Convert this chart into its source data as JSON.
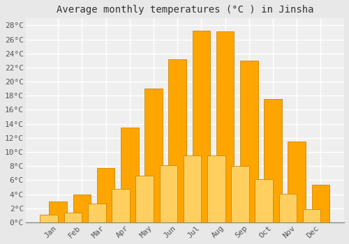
{
  "title": "Average monthly temperatures (°C ) in Jinsha",
  "months": [
    "Jan",
    "Feb",
    "Mar",
    "Apr",
    "May",
    "Jun",
    "Jul",
    "Aug",
    "Sep",
    "Oct",
    "Nov",
    "Dec"
  ],
  "values": [
    3,
    4,
    7.7,
    13.5,
    19,
    23.2,
    27.2,
    27.1,
    23,
    17.5,
    11.5,
    5.3
  ],
  "bar_color_top": "#FFA500",
  "bar_color_bottom": "#FFD060",
  "bar_edge_color": "#CC8800",
  "ylim": [
    0,
    29
  ],
  "yticks": [
    0,
    2,
    4,
    6,
    8,
    10,
    12,
    14,
    16,
    18,
    20,
    22,
    24,
    26,
    28
  ],
  "background_color": "#e8e8e8",
  "plot_bg_color": "#efefef",
  "grid_color": "#ffffff",
  "title_fontsize": 10,
  "tick_fontsize": 8,
  "font_family": "monospace"
}
